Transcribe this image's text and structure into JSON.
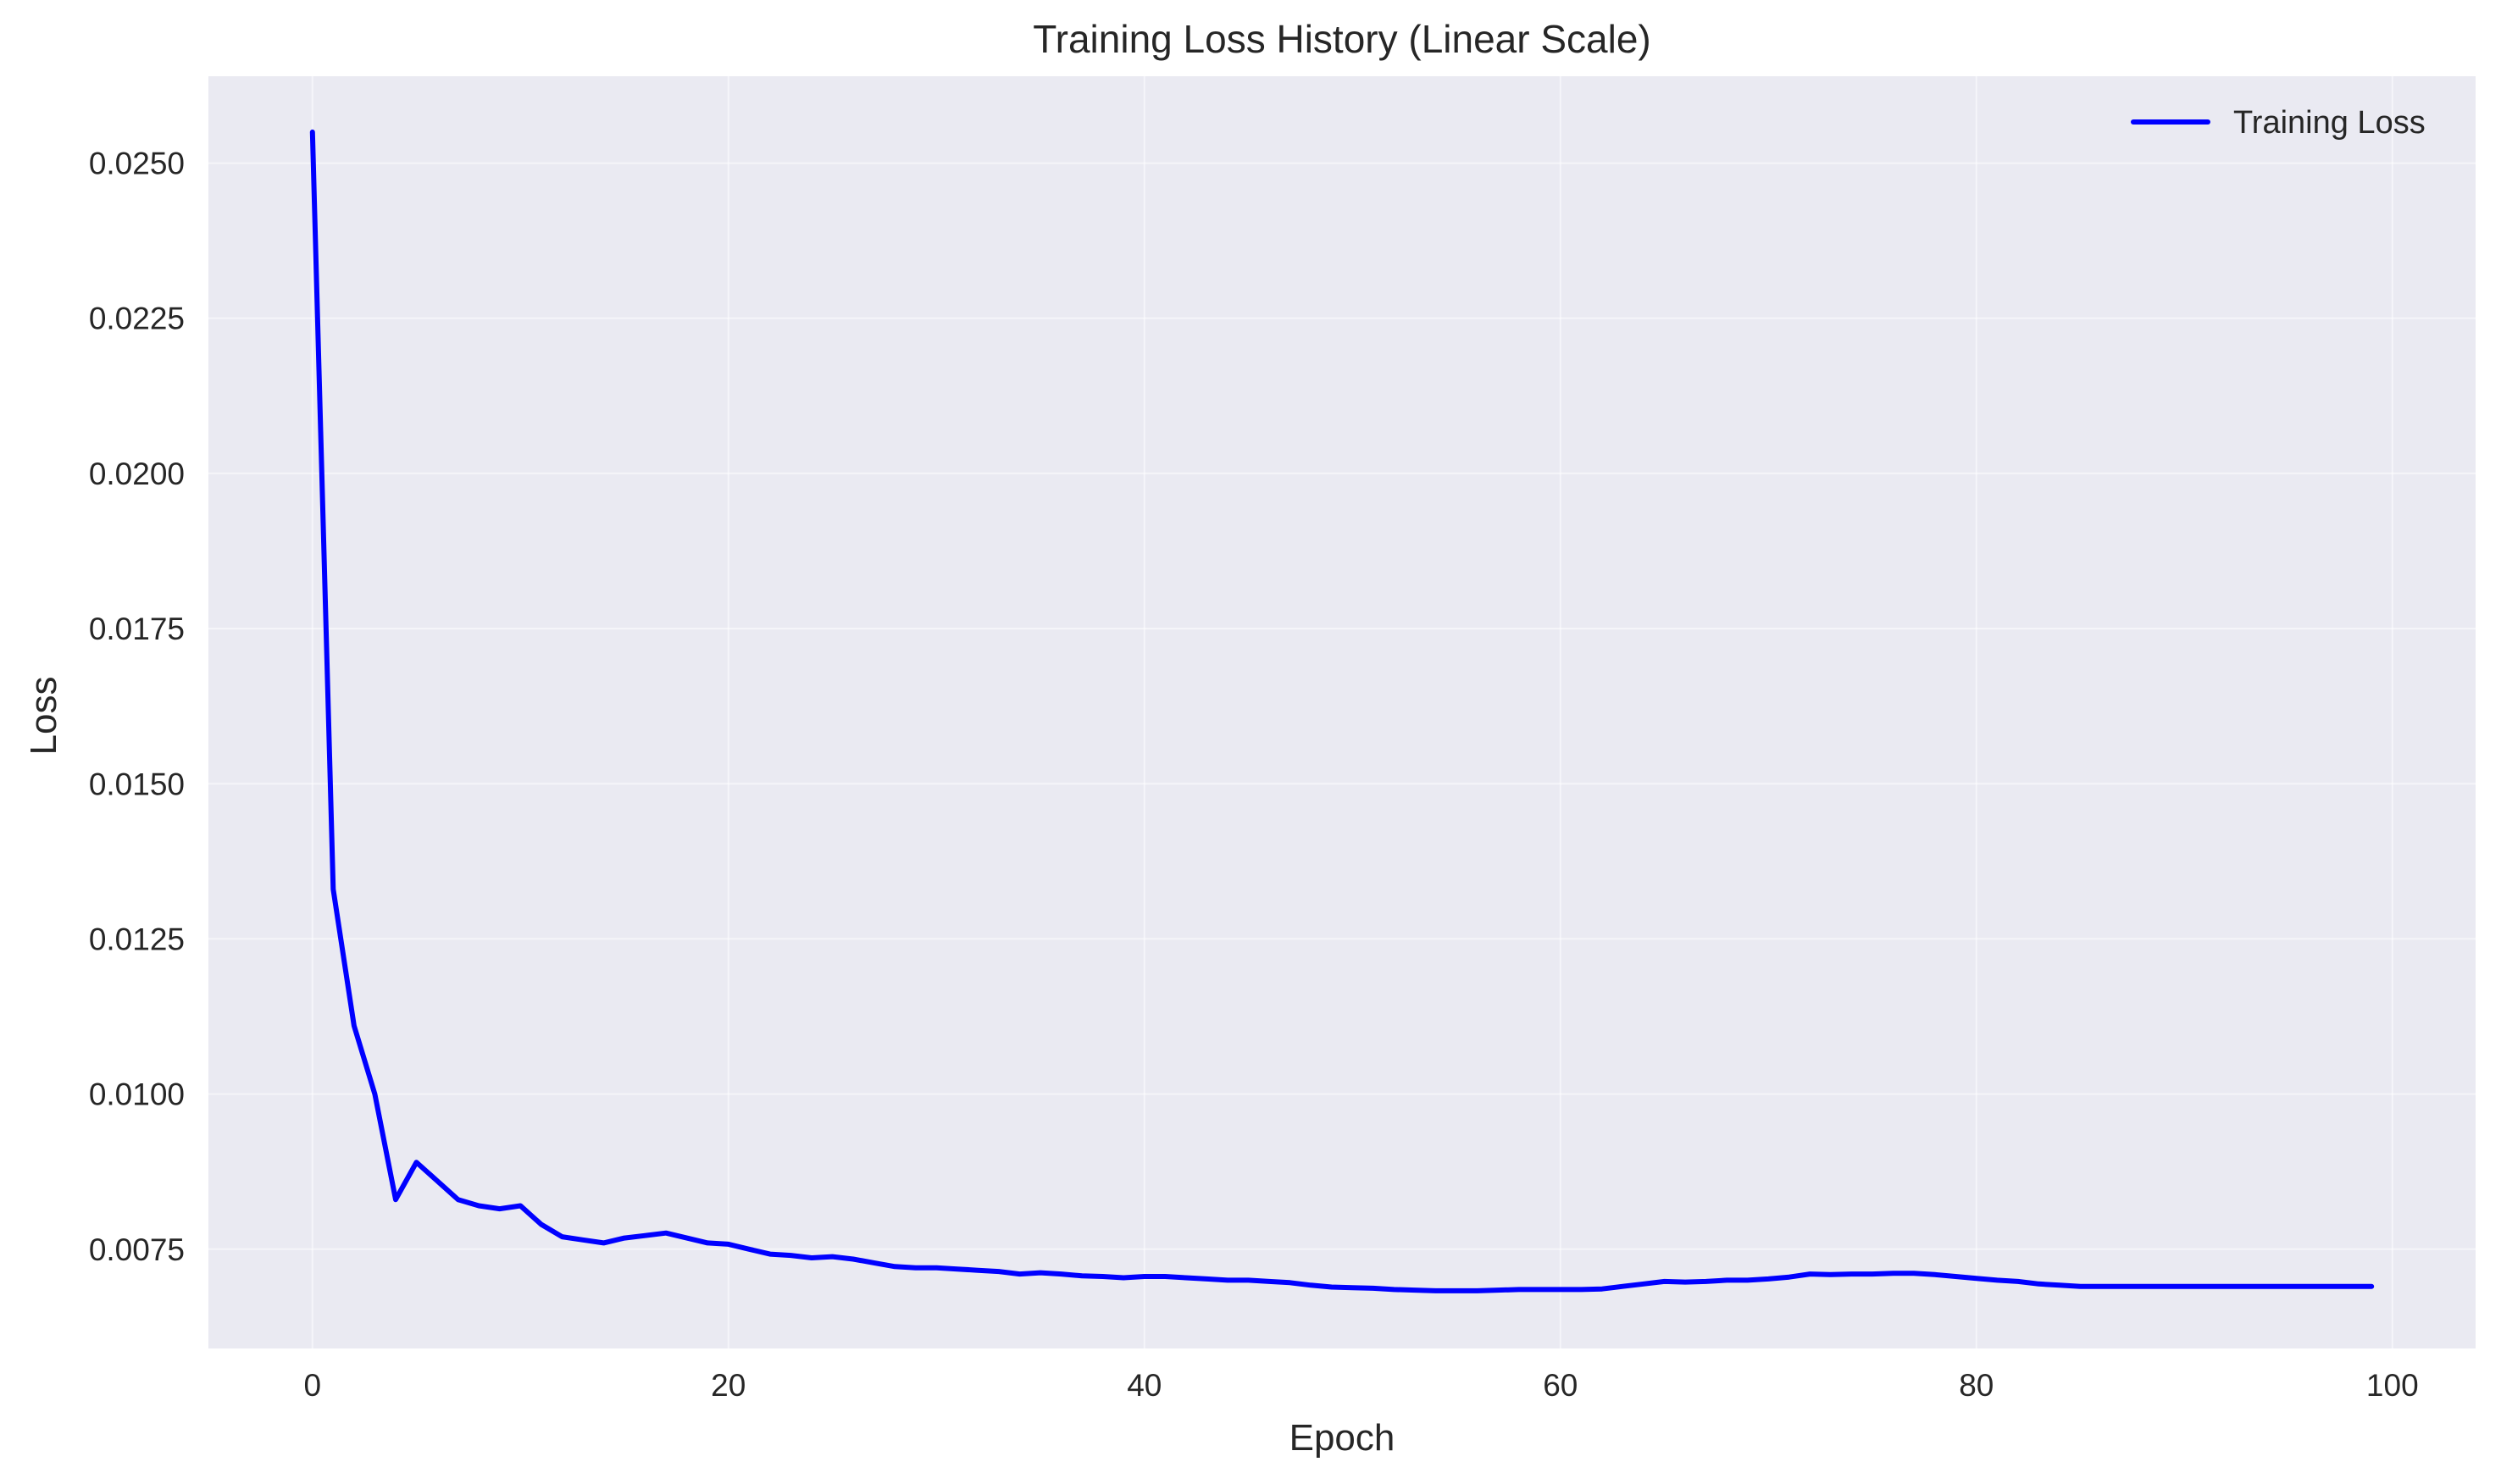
{
  "chart_data": {
    "type": "line",
    "title": "Training Loss History (Linear Scale)",
    "xlabel": "Epoch",
    "ylabel": "Loss",
    "xlim": [
      -5,
      104
    ],
    "ylim": [
      0.0059,
      0.0264
    ],
    "x_ticks": [
      0,
      20,
      40,
      60,
      80,
      100
    ],
    "x_tick_labels": [
      "0",
      "20",
      "40",
      "60",
      "80",
      "100"
    ],
    "y_ticks": [
      0.0075,
      0.01,
      0.0125,
      0.015,
      0.0175,
      0.02,
      0.0225,
      0.025
    ],
    "y_tick_labels": [
      "0.0075",
      "0.0100",
      "0.0125",
      "0.0150",
      "0.0175",
      "0.0200",
      "0.0225",
      "0.0250"
    ],
    "grid": true,
    "legend_position": "top-right",
    "series": [
      {
        "name": "Training Loss",
        "color": "#0000ff",
        "x": [
          0,
          1,
          2,
          3,
          4,
          5,
          6,
          7,
          8,
          9,
          10,
          11,
          12,
          13,
          14,
          15,
          16,
          17,
          18,
          19,
          20,
          21,
          22,
          23,
          24,
          25,
          26,
          27,
          28,
          29,
          30,
          31,
          32,
          33,
          34,
          35,
          36,
          37,
          38,
          39,
          40,
          41,
          42,
          43,
          44,
          45,
          46,
          47,
          48,
          49,
          50,
          51,
          52,
          53,
          54,
          55,
          56,
          57,
          58,
          59,
          60,
          61,
          62,
          63,
          64,
          65,
          66,
          67,
          68,
          69,
          70,
          71,
          72,
          73,
          74,
          75,
          76,
          77,
          78,
          79,
          80,
          81,
          82,
          83,
          84,
          85,
          86,
          87,
          88,
          89,
          90,
          91,
          92,
          93,
          94,
          95,
          96,
          97,
          98,
          99
        ],
        "values": [
          0.0255,
          0.0133,
          0.0111,
          0.01,
          0.0083,
          0.0089,
          0.0086,
          0.0083,
          0.0082,
          0.00815,
          0.0082,
          0.0079,
          0.0077,
          0.00765,
          0.0076,
          0.00768,
          0.00772,
          0.00776,
          0.00768,
          0.0076,
          0.00758,
          0.0075,
          0.00742,
          0.0074,
          0.00736,
          0.00738,
          0.00734,
          0.00728,
          0.00722,
          0.0072,
          0.0072,
          0.00718,
          0.00716,
          0.00714,
          0.0071,
          0.00712,
          0.0071,
          0.00707,
          0.00706,
          0.00704,
          0.00706,
          0.00706,
          0.00704,
          0.00702,
          0.007,
          0.007,
          0.00698,
          0.00696,
          0.00692,
          0.00689,
          0.00688,
          0.00687,
          0.00685,
          0.00684,
          0.00683,
          0.00683,
          0.00683,
          0.00684,
          0.00685,
          0.00685,
          0.00685,
          0.00685,
          0.00686,
          0.0069,
          0.00694,
          0.00698,
          0.00697,
          0.00698,
          0.007,
          0.007,
          0.00702,
          0.00705,
          0.0071,
          0.00709,
          0.0071,
          0.0071,
          0.00711,
          0.00711,
          0.00709,
          0.00706,
          0.00703,
          0.007,
          0.00698,
          0.00694,
          0.00692,
          0.0069,
          0.0069,
          0.0069,
          0.0069,
          0.0069,
          0.0069,
          0.0069,
          0.0069,
          0.0069,
          0.0069,
          0.0069,
          0.0069,
          0.0069,
          0.0069,
          0.0069
        ]
      }
    ]
  }
}
